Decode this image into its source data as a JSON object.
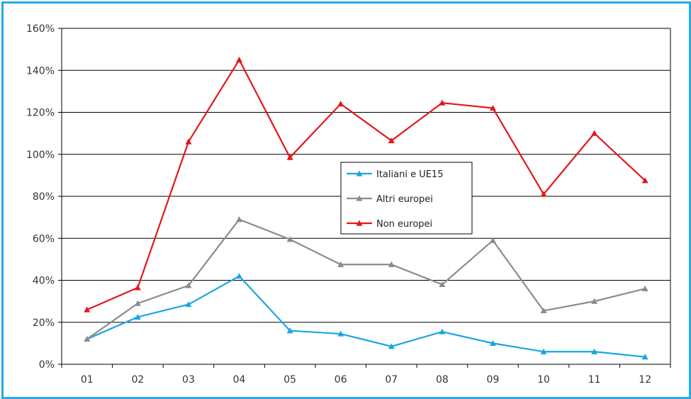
{
  "chart_data": {
    "type": "line",
    "categories": [
      "01",
      "02",
      "03",
      "04",
      "05",
      "06",
      "07",
      "08",
      "09",
      "10",
      "11",
      "12"
    ],
    "y_tick_labels": [
      "0%",
      "20%",
      "40%",
      "60%",
      "80%",
      "100%",
      "120%",
      "140%",
      "160%"
    ],
    "ylim": [
      0,
      160
    ],
    "y_unit": "%",
    "grid": true,
    "legend_position": "center",
    "series": [
      {
        "name": "Italiani e UE15",
        "color": "#1aa6e0",
        "values": [
          12,
          22.5,
          28.5,
          42,
          16,
          14.5,
          8.5,
          15.5,
          10,
          6,
          6,
          3.5
        ]
      },
      {
        "name": "Altri europei",
        "color": "#8c8c8c",
        "values": [
          12,
          29,
          37.5,
          69,
          59.5,
          47.5,
          47.5,
          38,
          59,
          25.5,
          30,
          36
        ]
      },
      {
        "name": "Non europei",
        "color": "#e3161b",
        "values": [
          26,
          36.5,
          106,
          145,
          98.5,
          124,
          106.5,
          124.5,
          122,
          81,
          110,
          87.5
        ]
      }
    ]
  }
}
